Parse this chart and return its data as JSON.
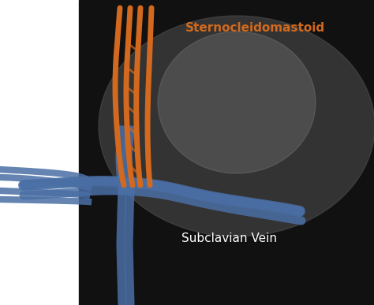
{
  "fig_width": 4.74,
  "fig_height": 3.87,
  "dpi": 100,
  "bg_color": "#1a1a1a",
  "orange_color": "#D2691E",
  "blue_color": "#4a6fa5",
  "blue_light": "#6a8fc5",
  "text_orange": "#D2691E",
  "text_white": "#ffffff",
  "label_sternocleidomastoid": "Sternocleidomastoid",
  "label_subclavian": "Subclavian Vein",
  "white_bg_left": true
}
